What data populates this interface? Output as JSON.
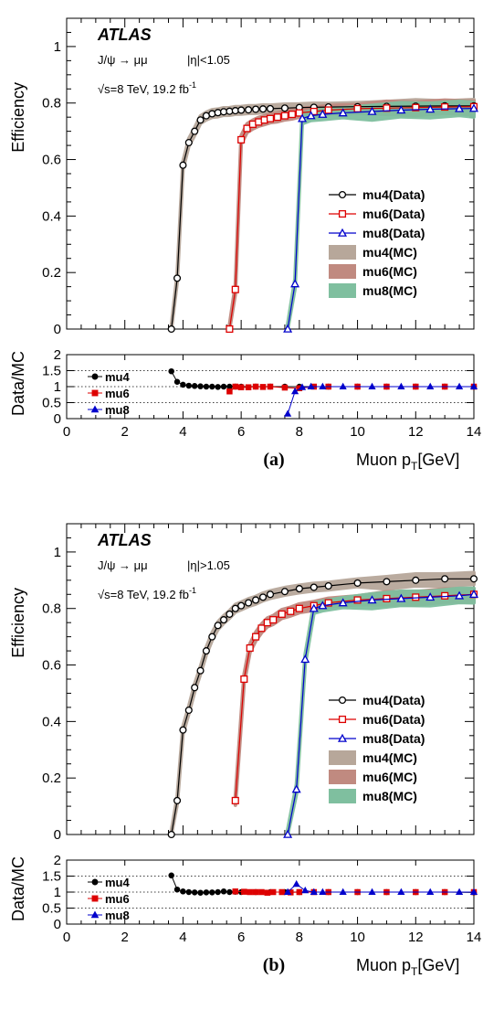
{
  "chart_data": [
    {
      "panel_label": "(a)",
      "type": "line",
      "title": "",
      "experiment": "ATLAS",
      "process": "J/ψ → μμ",
      "eta_cut": "|η|<1.05",
      "energy": "√s=8 TeV, 19.2 fb",
      "energy_sup": "-1",
      "ylabel": "Efficiency",
      "xlabel_main": "Muon p",
      "xlabel_sub": "T",
      "xlabel_unit": "[GeV]",
      "xlim": [
        0,
        14
      ],
      "ylim": [
        0,
        1.1
      ],
      "x_ticks": [
        "0",
        "2",
        "4",
        "6",
        "8",
        "10",
        "12",
        "14"
      ],
      "y_ticks": [
        "0",
        "0.2",
        "0.4",
        "0.6",
        "0.8",
        "1"
      ],
      "legend_position": "center-right",
      "series": [
        {
          "name": "mu4(Data)",
          "color": "#000000",
          "marker": "circle",
          "x": [
            3.6,
            3.8,
            4.0,
            4.2,
            4.4,
            4.6,
            4.8,
            5.0,
            5.2,
            5.4,
            5.6,
            5.8,
            6.0,
            6.25,
            6.5,
            6.75,
            7.0,
            7.5,
            8.0,
            8.5,
            9.0,
            10.0,
            11.0,
            12.0,
            13.0,
            14.0
          ],
          "y": [
            0.0,
            0.18,
            0.58,
            0.66,
            0.7,
            0.74,
            0.755,
            0.762,
            0.766,
            0.769,
            0.771,
            0.773,
            0.775,
            0.776,
            0.778,
            0.779,
            0.78,
            0.782,
            0.784,
            0.785,
            0.786,
            0.787,
            0.788,
            0.789,
            0.79,
            0.79
          ]
        },
        {
          "name": "mu6(Data)",
          "color": "#dd0000",
          "marker": "square",
          "x": [
            5.6,
            5.8,
            6.0,
            6.2,
            6.4,
            6.6,
            6.8,
            7.0,
            7.25,
            7.5,
            7.75,
            8.0,
            8.5,
            9.0,
            10.0,
            11.0,
            12.0,
            13.0,
            14.0
          ],
          "y": [
            0.0,
            0.14,
            0.67,
            0.71,
            0.725,
            0.733,
            0.74,
            0.745,
            0.75,
            0.755,
            0.76,
            0.765,
            0.77,
            0.775,
            0.78,
            0.782,
            0.784,
            0.786,
            0.787
          ]
        },
        {
          "name": "mu8(Data)",
          "color": "#0000cc",
          "marker": "triangle",
          "x": [
            7.6,
            7.85,
            8.1,
            8.4,
            8.8,
            9.5,
            10.5,
            11.5,
            12.5,
            13.5,
            14.0
          ],
          "y": [
            0.0,
            0.16,
            0.745,
            0.755,
            0.76,
            0.765,
            0.77,
            0.775,
            0.778,
            0.78,
            0.781
          ]
        }
      ],
      "mc_bands": [
        {
          "name": "mu4(MC)",
          "color": "#b7a79a"
        },
        {
          "name": "mu6(MC)",
          "color": "#c08a80"
        },
        {
          "name": "mu8(MC)",
          "color": "#7fbf9f"
        }
      ],
      "ratio": {
        "ylabel": "Data/MC",
        "ylim": [
          0,
          2
        ],
        "y_ticks": [
          "0",
          "0.5",
          "1",
          "1.5",
          "2"
        ],
        "legend": [
          {
            "name": "mu4",
            "color": "#000000",
            "marker": "circle"
          },
          {
            "name": "mu6",
            "color": "#dd0000",
            "marker": "square"
          },
          {
            "name": "mu8",
            "color": "#0000cc",
            "marker": "triangle"
          }
        ],
        "series": [
          {
            "name": "mu4",
            "x": [
              3.6,
              3.8,
              4.0,
              4.2,
              4.4,
              4.6,
              4.8,
              5.0,
              5.2,
              5.4,
              5.6,
              5.8,
              6.0,
              6.5,
              7.0,
              7.5,
              8.0,
              9.0,
              10.0,
              11.0,
              12.0,
              13.0,
              14.0
            ],
            "y": [
              1.48,
              1.15,
              1.06,
              1.03,
              1.02,
              1.01,
              1.0,
              1.0,
              0.99,
              1.0,
              1.0,
              1.0,
              1.0,
              1.0,
              1.0,
              1.0,
              1.0,
              1.0,
              1.0,
              1.0,
              1.0,
              1.0,
              1.0
            ]
          },
          {
            "name": "mu6",
            "x": [
              5.6,
              5.8,
              6.0,
              6.25,
              6.5,
              6.75,
              7.0,
              7.5,
              8.0,
              8.5,
              9.0,
              10.0,
              11.0,
              12.0,
              13.0,
              14.0
            ],
            "y": [
              0.85,
              1.0,
              0.98,
              0.98,
              1.0,
              0.99,
              1.0,
              0.97,
              0.95,
              1.0,
              1.0,
              1.0,
              1.0,
              1.0,
              1.0,
              1.0
            ]
          },
          {
            "name": "mu8",
            "x": [
              7.6,
              7.85,
              8.1,
              8.4,
              8.8,
              9.5,
              10.5,
              11.5,
              12.5,
              13.5,
              14.0
            ],
            "y": [
              0.15,
              0.85,
              0.98,
              1.0,
              1.0,
              1.0,
              1.0,
              1.0,
              1.0,
              1.0,
              1.0
            ]
          }
        ]
      }
    },
    {
      "panel_label": "(b)",
      "type": "line",
      "title": "",
      "experiment": "ATLAS",
      "process": "J/ψ → μμ",
      "eta_cut": "|η|>1.05",
      "energy": "√s=8 TeV, 19.2 fb",
      "energy_sup": "-1",
      "ylabel": "Efficiency",
      "xlabel_main": "Muon p",
      "xlabel_sub": "T",
      "xlabel_unit": "[GeV]",
      "xlim": [
        0,
        14
      ],
      "ylim": [
        0,
        1.1
      ],
      "x_ticks": [
        "0",
        "2",
        "4",
        "6",
        "8",
        "10",
        "12",
        "14"
      ],
      "y_ticks": [
        "0",
        "0.2",
        "0.4",
        "0.6",
        "0.8",
        "1"
      ],
      "legend_position": "center-right",
      "series": [
        {
          "name": "mu4(Data)",
          "color": "#000000",
          "marker": "circle",
          "x": [
            3.6,
            3.8,
            4.0,
            4.2,
            4.4,
            4.6,
            4.8,
            5.0,
            5.2,
            5.4,
            5.6,
            5.8,
            6.0,
            6.25,
            6.5,
            6.75,
            7.0,
            7.5,
            8.0,
            8.5,
            9.0,
            10.0,
            11.0,
            12.0,
            13.0,
            14.0
          ],
          "y": [
            0.0,
            0.12,
            0.37,
            0.44,
            0.52,
            0.58,
            0.65,
            0.7,
            0.74,
            0.76,
            0.78,
            0.8,
            0.81,
            0.82,
            0.83,
            0.84,
            0.85,
            0.86,
            0.87,
            0.875,
            0.88,
            0.89,
            0.895,
            0.9,
            0.905,
            0.905
          ]
        },
        {
          "name": "mu6(Data)",
          "color": "#dd0000",
          "marker": "square",
          "x": [
            5.8,
            6.1,
            6.3,
            6.5,
            6.7,
            6.9,
            7.1,
            7.4,
            7.7,
            8.0,
            8.5,
            9.0,
            10.0,
            11.0,
            12.0,
            13.0,
            14.0
          ],
          "y": [
            0.12,
            0.55,
            0.66,
            0.7,
            0.73,
            0.75,
            0.76,
            0.78,
            0.79,
            0.8,
            0.81,
            0.82,
            0.83,
            0.835,
            0.84,
            0.845,
            0.85
          ]
        },
        {
          "name": "mu8(Data)",
          "color": "#0000cc",
          "marker": "triangle",
          "x": [
            7.6,
            7.9,
            8.2,
            8.5,
            8.8,
            9.5,
            10.5,
            11.5,
            12.5,
            13.5,
            14.0
          ],
          "y": [
            0.0,
            0.16,
            0.62,
            0.8,
            0.81,
            0.82,
            0.83,
            0.835,
            0.84,
            0.845,
            0.85
          ]
        }
      ],
      "mc_bands": [
        {
          "name": "mu4(MC)",
          "color": "#b7a79a"
        },
        {
          "name": "mu6(MC)",
          "color": "#c08a80"
        },
        {
          "name": "mu8(MC)",
          "color": "#7fbf9f"
        }
      ],
      "ratio": {
        "ylabel": "Data/MC",
        "ylim": [
          0,
          2
        ],
        "y_ticks": [
          "0",
          "0.5",
          "1",
          "1.5",
          "2"
        ],
        "legend": [
          {
            "name": "mu4",
            "color": "#000000",
            "marker": "circle"
          },
          {
            "name": "mu6",
            "color": "#dd0000",
            "marker": "square"
          },
          {
            "name": "mu8",
            "color": "#0000cc",
            "marker": "triangle"
          }
        ],
        "series": [
          {
            "name": "mu4",
            "x": [
              3.6,
              3.8,
              4.0,
              4.2,
              4.4,
              4.6,
              4.8,
              5.0,
              5.2,
              5.4,
              5.6,
              5.8,
              6.0,
              6.5,
              7.0,
              7.5,
              8.0,
              9.0,
              10.0,
              11.0,
              12.0,
              13.0,
              14.0
            ],
            "y": [
              1.52,
              1.08,
              1.02,
              1.0,
              0.99,
              0.98,
              0.99,
              0.99,
              1.0,
              1.02,
              1.0,
              1.01,
              1.0,
              1.0,
              1.0,
              1.0,
              1.0,
              1.0,
              1.0,
              1.0,
              1.0,
              1.0,
              0.99
            ]
          },
          {
            "name": "mu6",
            "x": [
              5.8,
              6.1,
              6.3,
              6.5,
              6.7,
              6.9,
              7.1,
              7.4,
              7.7,
              8.0,
              8.5,
              9.0,
              10.0,
              11.0,
              12.0,
              13.0,
              14.0
            ],
            "y": [
              1.02,
              1.01,
              1.0,
              1.0,
              1.0,
              0.98,
              1.0,
              1.0,
              0.99,
              1.0,
              1.0,
              1.0,
              1.0,
              1.0,
              1.0,
              1.0,
              1.0
            ]
          },
          {
            "name": "mu8",
            "x": [
              7.6,
              7.9,
              8.2,
              8.5,
              8.8,
              9.5,
              10.5,
              11.5,
              12.5,
              13.5,
              14.0
            ],
            "y": [
              1.0,
              1.25,
              1.05,
              1.0,
              1.0,
              1.0,
              1.0,
              1.0,
              1.0,
              1.0,
              1.0
            ]
          }
        ]
      }
    }
  ]
}
